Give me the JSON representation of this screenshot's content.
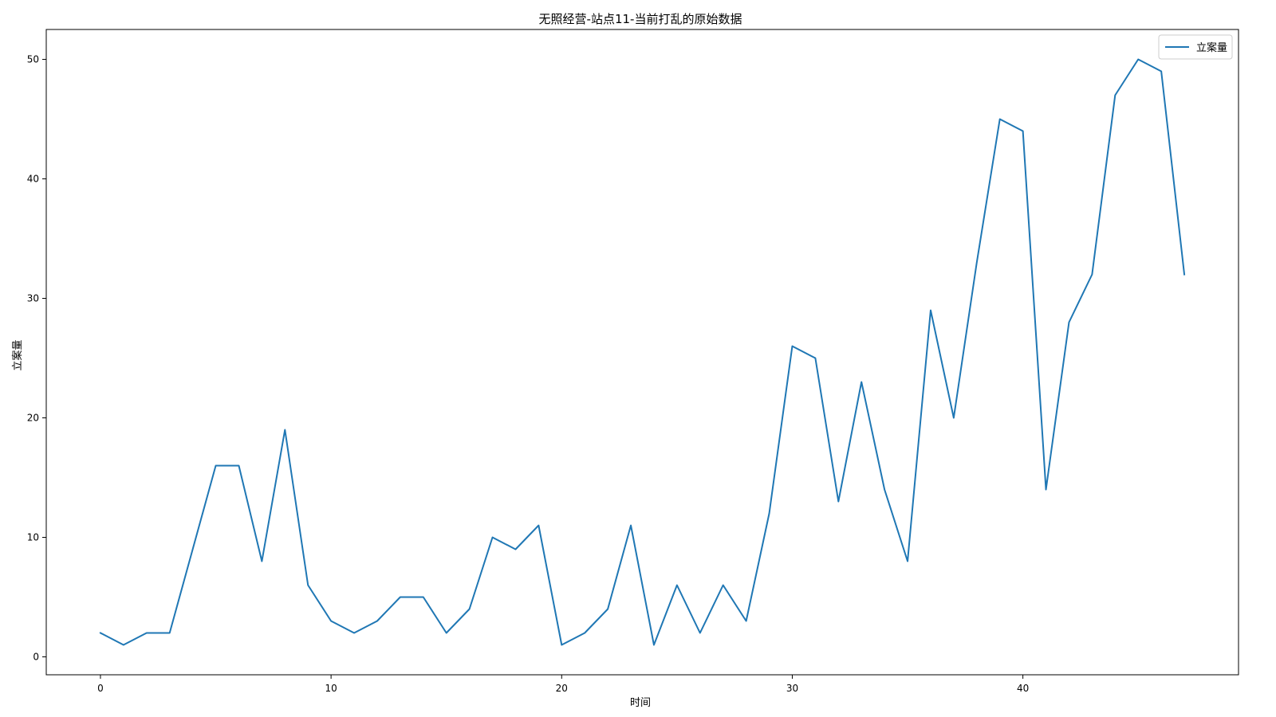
{
  "chart_data": {
    "type": "line",
    "title": "无照经营-站点11-当前打乱的原始数据",
    "xlabel": "时间",
    "ylabel": "立案量",
    "xlim": [
      -2.35,
      49.35
    ],
    "ylim": [
      -1.5,
      52.5
    ],
    "xticks": [
      0,
      10,
      20,
      30,
      40
    ],
    "yticks": [
      0,
      10,
      20,
      30,
      40,
      50
    ],
    "grid": false,
    "legend_position": "upper right",
    "series": [
      {
        "name": "立案量",
        "color": "#1f77b4",
        "x": [
          0,
          1,
          2,
          3,
          4,
          5,
          6,
          7,
          8,
          9,
          10,
          11,
          12,
          13,
          14,
          15,
          16,
          17,
          18,
          19,
          20,
          21,
          22,
          23,
          24,
          25,
          26,
          27,
          28,
          29,
          30,
          31,
          32,
          33,
          34,
          35,
          36,
          37,
          38,
          39,
          40,
          41,
          42,
          43,
          44,
          45,
          46,
          47
        ],
        "values": [
          2,
          1,
          2,
          2,
          9,
          16,
          16,
          8,
          19,
          6,
          3,
          2,
          3,
          5,
          5,
          2,
          4,
          10,
          9,
          11,
          1,
          2,
          4,
          11,
          1,
          6,
          2,
          6,
          3,
          12,
          26,
          25,
          13,
          23,
          14,
          8,
          29,
          20,
          33,
          45,
          44,
          14,
          28,
          32,
          47,
          50,
          49,
          32
        ]
      }
    ]
  }
}
